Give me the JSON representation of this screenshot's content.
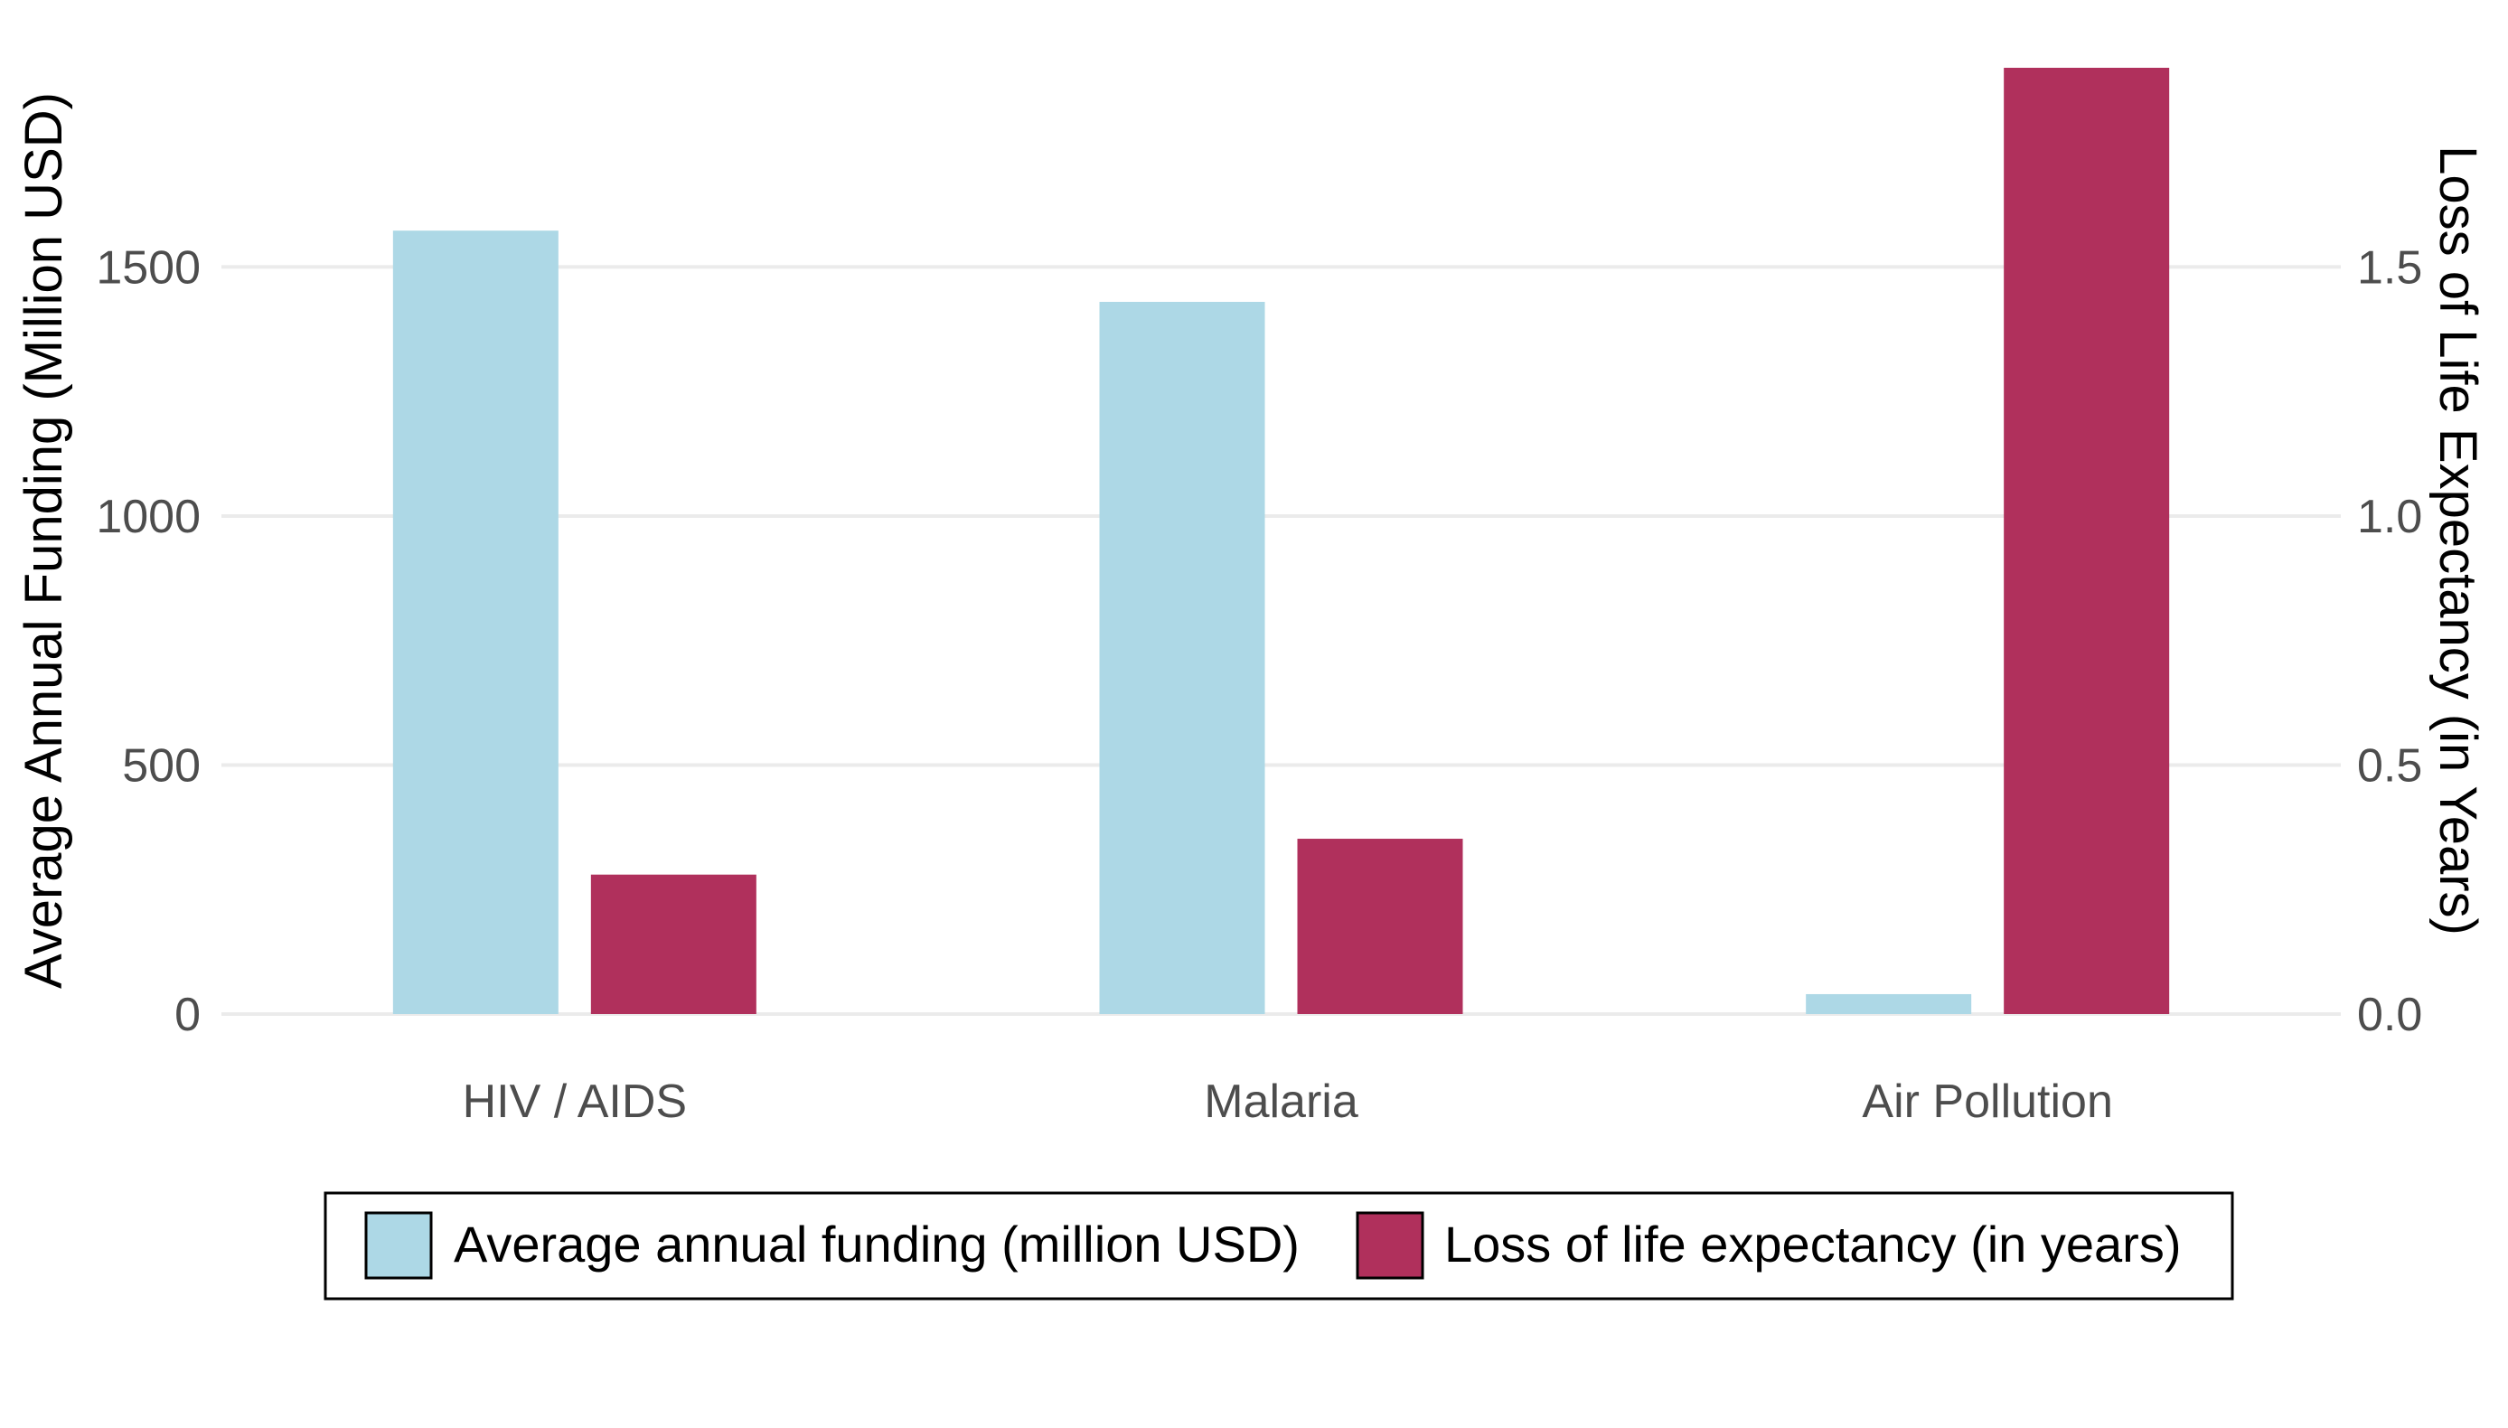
{
  "chart_data": {
    "type": "bar",
    "categories": [
      "HIV / AIDS",
      "Malaria",
      "Air Pollution"
    ],
    "series": [
      {
        "name": "Average annual funding (million USD)",
        "axis": "left",
        "color": "#add8e6",
        "values": [
          1573,
          1430,
          40
        ]
      },
      {
        "name": "Loss of life expectancy (in years)",
        "axis": "right",
        "color": "#b0305c",
        "values": [
          0.28,
          0.352,
          1.9
        ]
      }
    ],
    "ylabel": "Average Annual Funding (Million USD)",
    "ylabel_right": "Loss of Life Expectancy (in Years)",
    "ylim": [
      0,
      1900
    ],
    "ylim_right": [
      0,
      1.9
    ],
    "yticks": [
      {
        "value": 0,
        "label": "0"
      },
      {
        "value": 500,
        "label": "500"
      },
      {
        "value": 1000,
        "label": "1000"
      },
      {
        "value": 1500,
        "label": "1500"
      }
    ],
    "yticks_right": [
      {
        "value": 0,
        "label": "0.0"
      },
      {
        "value": 0.5,
        "label": "0.5"
      },
      {
        "value": 1.0,
        "label": "1.0"
      },
      {
        "value": 1.5,
        "label": "1.5"
      }
    ],
    "grid": "horizontal",
    "legend_position": "bottom"
  }
}
